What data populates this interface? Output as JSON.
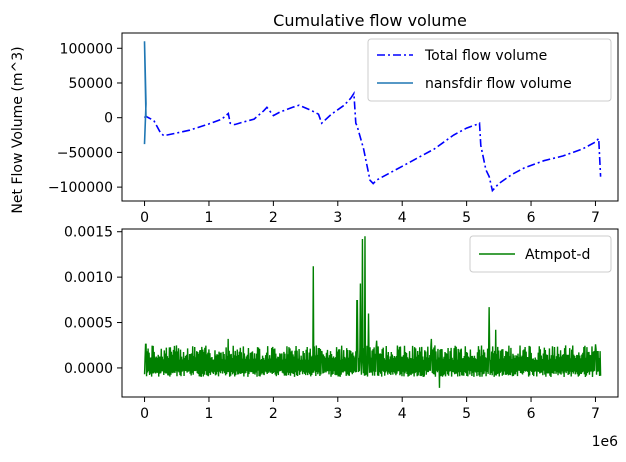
{
  "chart_data": [
    {
      "type": "line",
      "title": "Cumulative flow volume",
      "xlabel": "",
      "ylabel": "Net Flow Volume (m^3)",
      "xlim": [
        -0.35,
        7.35
      ],
      "ylim": [
        -120000,
        122000
      ],
      "x_scale_note": "",
      "xticks": [
        0,
        1,
        2,
        3,
        4,
        5,
        6,
        7
      ],
      "xtick_labels": [
        "0",
        "1",
        "2",
        "3",
        "4",
        "5",
        "6",
        "7"
      ],
      "yticks": [
        100000,
        50000,
        0,
        -50000,
        -100000
      ],
      "ytick_labels": [
        "100000",
        "50000",
        "0",
        "−50000",
        "−100000"
      ],
      "legend": {
        "placement": "top-right",
        "entries": [
          "Total flow volume",
          "nansfdir flow volume"
        ]
      },
      "grid": false,
      "series": [
        {
          "name": "Total flow volume",
          "color": "#0000ff",
          "style": "dashdot",
          "x": [
            0,
            0.02,
            0.1,
            0.15,
            0.25,
            0.3,
            0.5,
            0.7,
            0.9,
            1.0,
            1.2,
            1.3,
            1.33,
            1.4,
            1.5,
            1.7,
            1.85,
            1.9,
            2.0,
            2.1,
            2.3,
            2.4,
            2.5,
            2.6,
            2.7,
            2.75,
            2.9,
            3.1,
            3.2,
            3.25,
            3.28,
            3.3,
            3.4,
            3.5,
            3.55,
            3.6,
            3.8,
            4.0,
            4.2,
            4.5,
            4.8,
            5.0,
            5.15,
            5.2,
            5.22,
            5.3,
            5.35,
            5.4,
            5.5,
            5.7,
            5.9,
            6.2,
            6.5,
            6.8,
            7.0,
            7.05,
            7.08
          ],
          "y": [
            0,
            2000,
            -2000,
            -5000,
            -22000,
            -26000,
            -22000,
            -18000,
            -12000,
            -9000,
            -2000,
            6000,
            -8000,
            -10000,
            -7000,
            -2000,
            10000,
            15000,
            3000,
            8000,
            15000,
            18000,
            14000,
            10000,
            5000,
            -8000,
            5000,
            18000,
            28000,
            35000,
            -8000,
            -12000,
            -45000,
            -90000,
            -95000,
            -90000,
            -80000,
            -70000,
            -60000,
            -45000,
            -25000,
            -15000,
            -10000,
            -8000,
            -40000,
            -75000,
            -85000,
            -105000,
            -95000,
            -82000,
            -72000,
            -62000,
            -55000,
            -45000,
            -35000,
            -30000,
            -85000
          ]
        },
        {
          "name": "nansfdir flow volume",
          "color": "#1f77b4",
          "style": "solid",
          "x": [
            0,
            0,
            0,
            0
          ],
          "y": [
            -38000,
            20000,
            110000,
            0
          ]
        }
      ]
    },
    {
      "type": "line",
      "title": "",
      "xlabel": "",
      "ylabel": "",
      "x_offset_label": "1e6",
      "xlim": [
        -0.35,
        7.35
      ],
      "ylim": [
        -0.00032,
        0.00153
      ],
      "xticks": [
        0,
        1,
        2,
        3,
        4,
        5,
        6,
        7
      ],
      "xtick_labels": [
        "0",
        "1",
        "2",
        "3",
        "4",
        "5",
        "6",
        "7"
      ],
      "yticks": [
        0.0015,
        0.001,
        0.0005,
        0.0
      ],
      "ytick_labels": [
        "0.0015",
        "0.0010",
        "0.0005",
        "0.0000"
      ],
      "legend": {
        "placement": "top-right",
        "entries": [
          "Atmpot-d"
        ]
      },
      "grid": false,
      "series": [
        {
          "name": "Atmpot-d",
          "color": "#008000",
          "style": "solid",
          "x_start": 0,
          "x_end": 7.08,
          "baseline_min": -0.0001,
          "typical_peak": 0.00025,
          "spikes": [
            {
              "x": 0.02,
              "y": 0.00026
            },
            {
              "x": 1.3,
              "y": 0.00032
            },
            {
              "x": 2.62,
              "y": 0.00112
            },
            {
              "x": 2.75,
              "y": 0.00018
            },
            {
              "x": 3.3,
              "y": 0.00074
            },
            {
              "x": 3.35,
              "y": 0.00093
            },
            {
              "x": 3.38,
              "y": 0.00142
            },
            {
              "x": 3.42,
              "y": 0.00145
            },
            {
              "x": 3.48,
              "y": 0.0006
            },
            {
              "x": 3.6,
              "y": 0.0003
            },
            {
              "x": 4.45,
              "y": 0.00032
            },
            {
              "x": 4.58,
              "y": -0.00022
            },
            {
              "x": 5.35,
              "y": 0.00067
            },
            {
              "x": 5.45,
              "y": 0.00042
            },
            {
              "x": 7.0,
              "y": 0.00026
            }
          ]
        }
      ]
    }
  ]
}
